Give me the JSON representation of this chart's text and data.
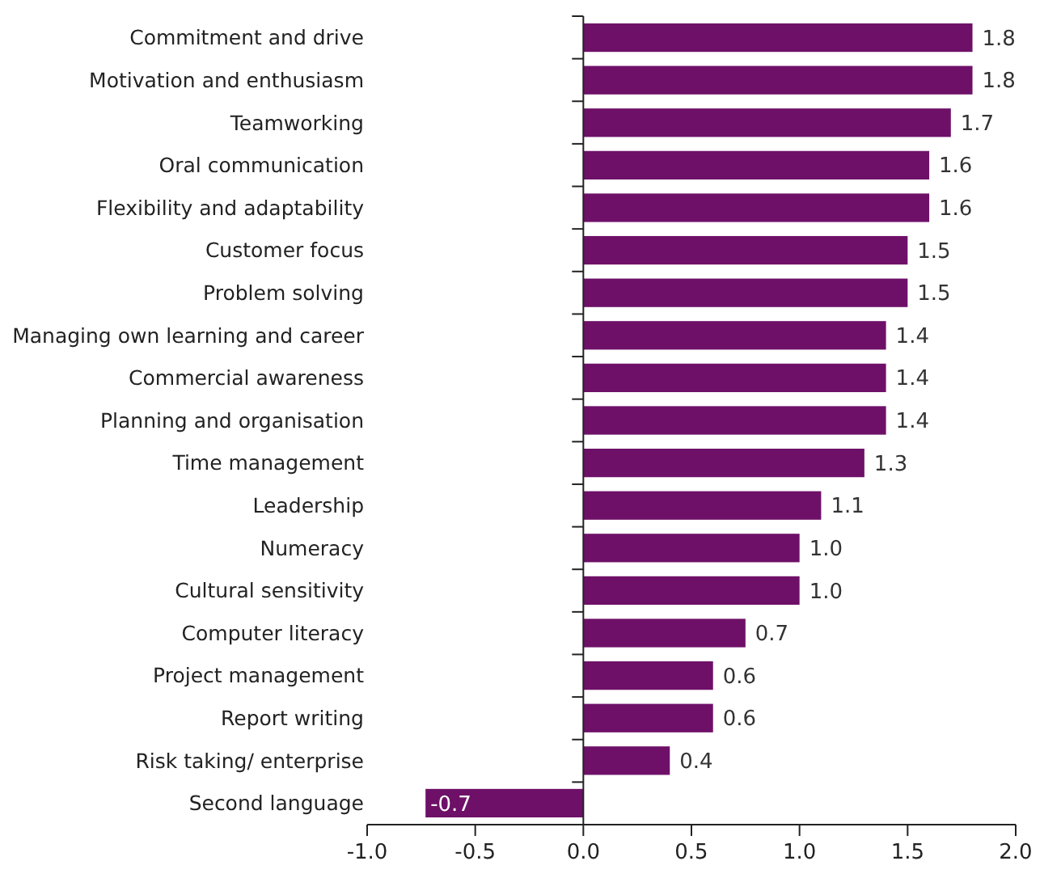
{
  "chart_data": {
    "type": "bar",
    "orientation": "horizontal",
    "categories": [
      "Commitment and drive",
      "Motivation and enthusiasm",
      "Teamworking",
      "Oral communication",
      "Flexibility and adaptability",
      "Customer focus",
      "Problem solving",
      "Managing own learning and career",
      "Commercial awareness",
      "Planning and organisation",
      "Time management",
      "Leadership",
      "Numeracy",
      "Cultural sensitivity",
      "Computer literacy",
      "Project management",
      "Report writing",
      "Risk taking/ enterprise",
      "Second language"
    ],
    "values": [
      1.8,
      1.8,
      1.7,
      1.6,
      1.6,
      1.5,
      1.5,
      1.4,
      1.4,
      1.4,
      1.3,
      1.1,
      1.0,
      1.0,
      0.75,
      0.6,
      0.6,
      0.4,
      -0.73
    ],
    "value_labels": [
      "1.8",
      "1.8",
      "1.7",
      "1.6",
      "1.6",
      "1.5",
      "1.5",
      "1.4",
      "1.4",
      "1.4",
      "1.3",
      "1.1",
      "1.0",
      "1.0",
      "0.7",
      "0.6",
      "0.6",
      "0.4",
      "-0.7"
    ],
    "color": "#6e1068",
    "xlim": [
      -1,
      2
    ],
    "xticks": [
      {
        "value": -1,
        "label": "-1.0"
      },
      {
        "value": -0.5,
        "label": "-0.5"
      },
      {
        "value": 0,
        "label": "0.0"
      },
      {
        "value": 0.5,
        "label": "0.5"
      },
      {
        "value": 1,
        "label": "1.0"
      },
      {
        "value": 1.5,
        "label": "1.5"
      },
      {
        "value": 2,
        "label": "2.0"
      }
    ]
  }
}
